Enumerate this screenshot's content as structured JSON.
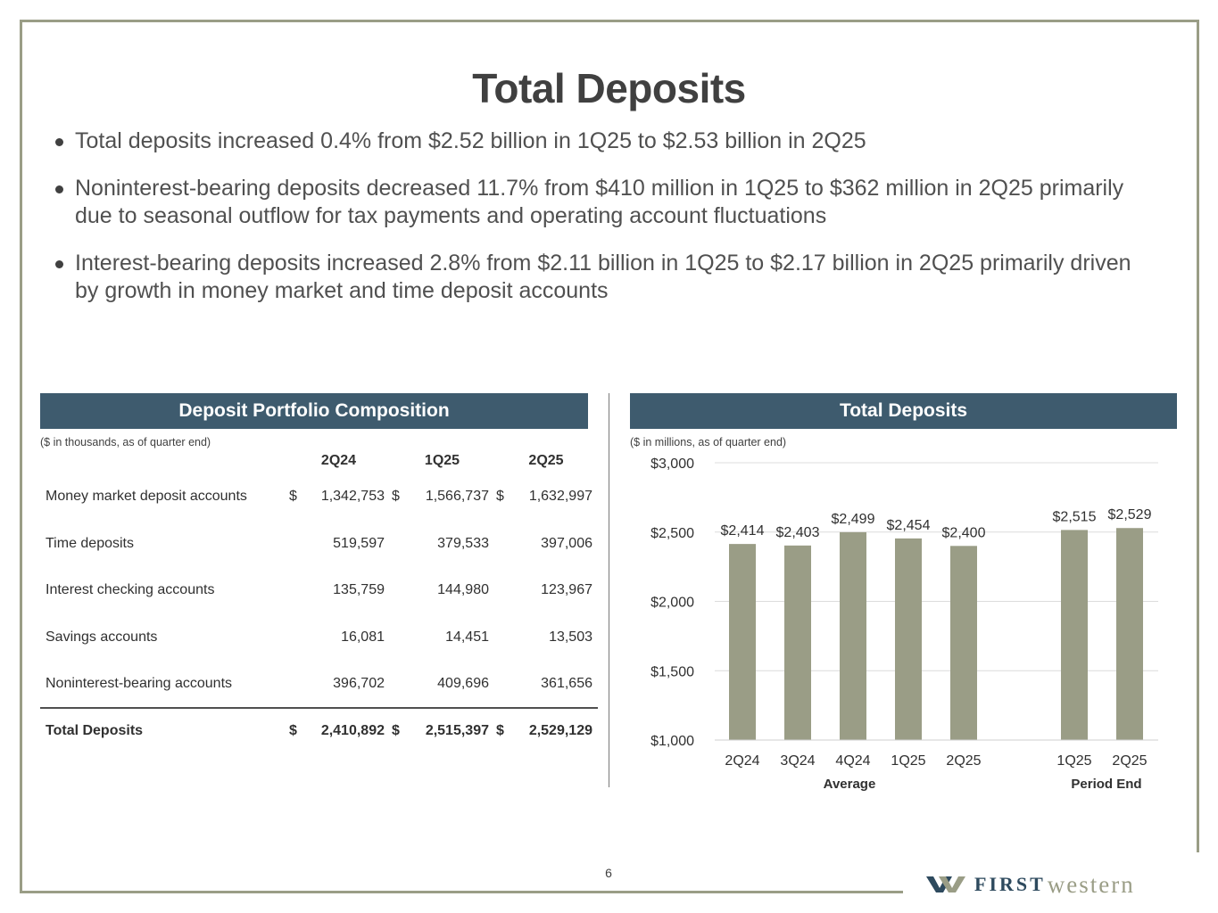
{
  "slide": {
    "title": "Total Deposits",
    "page_number": "6"
  },
  "bullets": [
    "Total deposits increased 0.4% from $2.52 billion in 1Q25 to $2.53 billion in 2Q25",
    "Noninterest-bearing deposits decreased 11.7% from $410 million in 1Q25 to $362 million in 2Q25 primarily due to seasonal outflow for tax payments and operating account fluctuations",
    "Interest-bearing deposits increased 2.8% from $2.11 billion in 1Q25 to $2.17 billion in 2Q25 primarily driven by growth in money market and time deposit accounts"
  ],
  "portfolio": {
    "header": "Deposit Portfolio Composition",
    "note": "($ in thousands, as of quarter end)",
    "columns": [
      "2Q24",
      "1Q25",
      "2Q25"
    ],
    "rows": [
      {
        "label": "Money market deposit accounts",
        "dollar": "$",
        "values": [
          "1,342,753",
          "1,566,737",
          "1,632,997"
        ]
      },
      {
        "label": "Time deposits",
        "dollar": "",
        "values": [
          "519,597",
          "379,533",
          "397,006"
        ]
      },
      {
        "label": "Interest checking accounts",
        "dollar": "",
        "values": [
          "135,759",
          "144,980",
          "123,967"
        ]
      },
      {
        "label": "Savings accounts",
        "dollar": "",
        "values": [
          "16,081",
          "14,451",
          "13,503"
        ]
      },
      {
        "label": "Noninterest-bearing accounts",
        "dollar": "",
        "values": [
          "396,702",
          "409,696",
          "361,656"
        ]
      }
    ],
    "total": {
      "label": "Total Deposits",
      "dollar": "$",
      "values": [
        "2,410,892",
        "2,515,397",
        "2,529,129"
      ]
    }
  },
  "deposits_chart": {
    "header": "Total Deposits",
    "note": "($ in millions, as of quarter end)"
  },
  "chart_data": {
    "type": "bar",
    "title": "Total Deposits",
    "ylabel": "$ in millions",
    "ylim": [
      1000,
      3000
    ],
    "yticks": [
      1000,
      1500,
      2000,
      2500,
      3000
    ],
    "ytick_labels": [
      "$1,000",
      "$1,500",
      "$2,000",
      "$2,500",
      "$3,000"
    ],
    "grid": true,
    "bar_color": "#9a9d86",
    "groups": [
      {
        "name": "Average",
        "categories": [
          "2Q24",
          "3Q24",
          "4Q24",
          "1Q25",
          "2Q25"
        ],
        "values": [
          2414,
          2403,
          2499,
          2454,
          2400
        ],
        "labels": [
          "$2,414",
          "$2,403",
          "$2,499",
          "$2,454",
          "$2,400"
        ]
      },
      {
        "name": "Period End",
        "categories": [
          "1Q25",
          "2Q25"
        ],
        "values": [
          2515,
          2529
        ],
        "labels": [
          "$2,515",
          "$2,529"
        ]
      }
    ]
  },
  "logo": {
    "first": "FIRST",
    "western": "western",
    "colors": {
      "navy": "#2e4a5e",
      "sage": "#9a9d86"
    }
  },
  "colors": {
    "frame": "#9a9d86",
    "panel_header": "#3e5b6e",
    "bar": "#9a9d86"
  }
}
